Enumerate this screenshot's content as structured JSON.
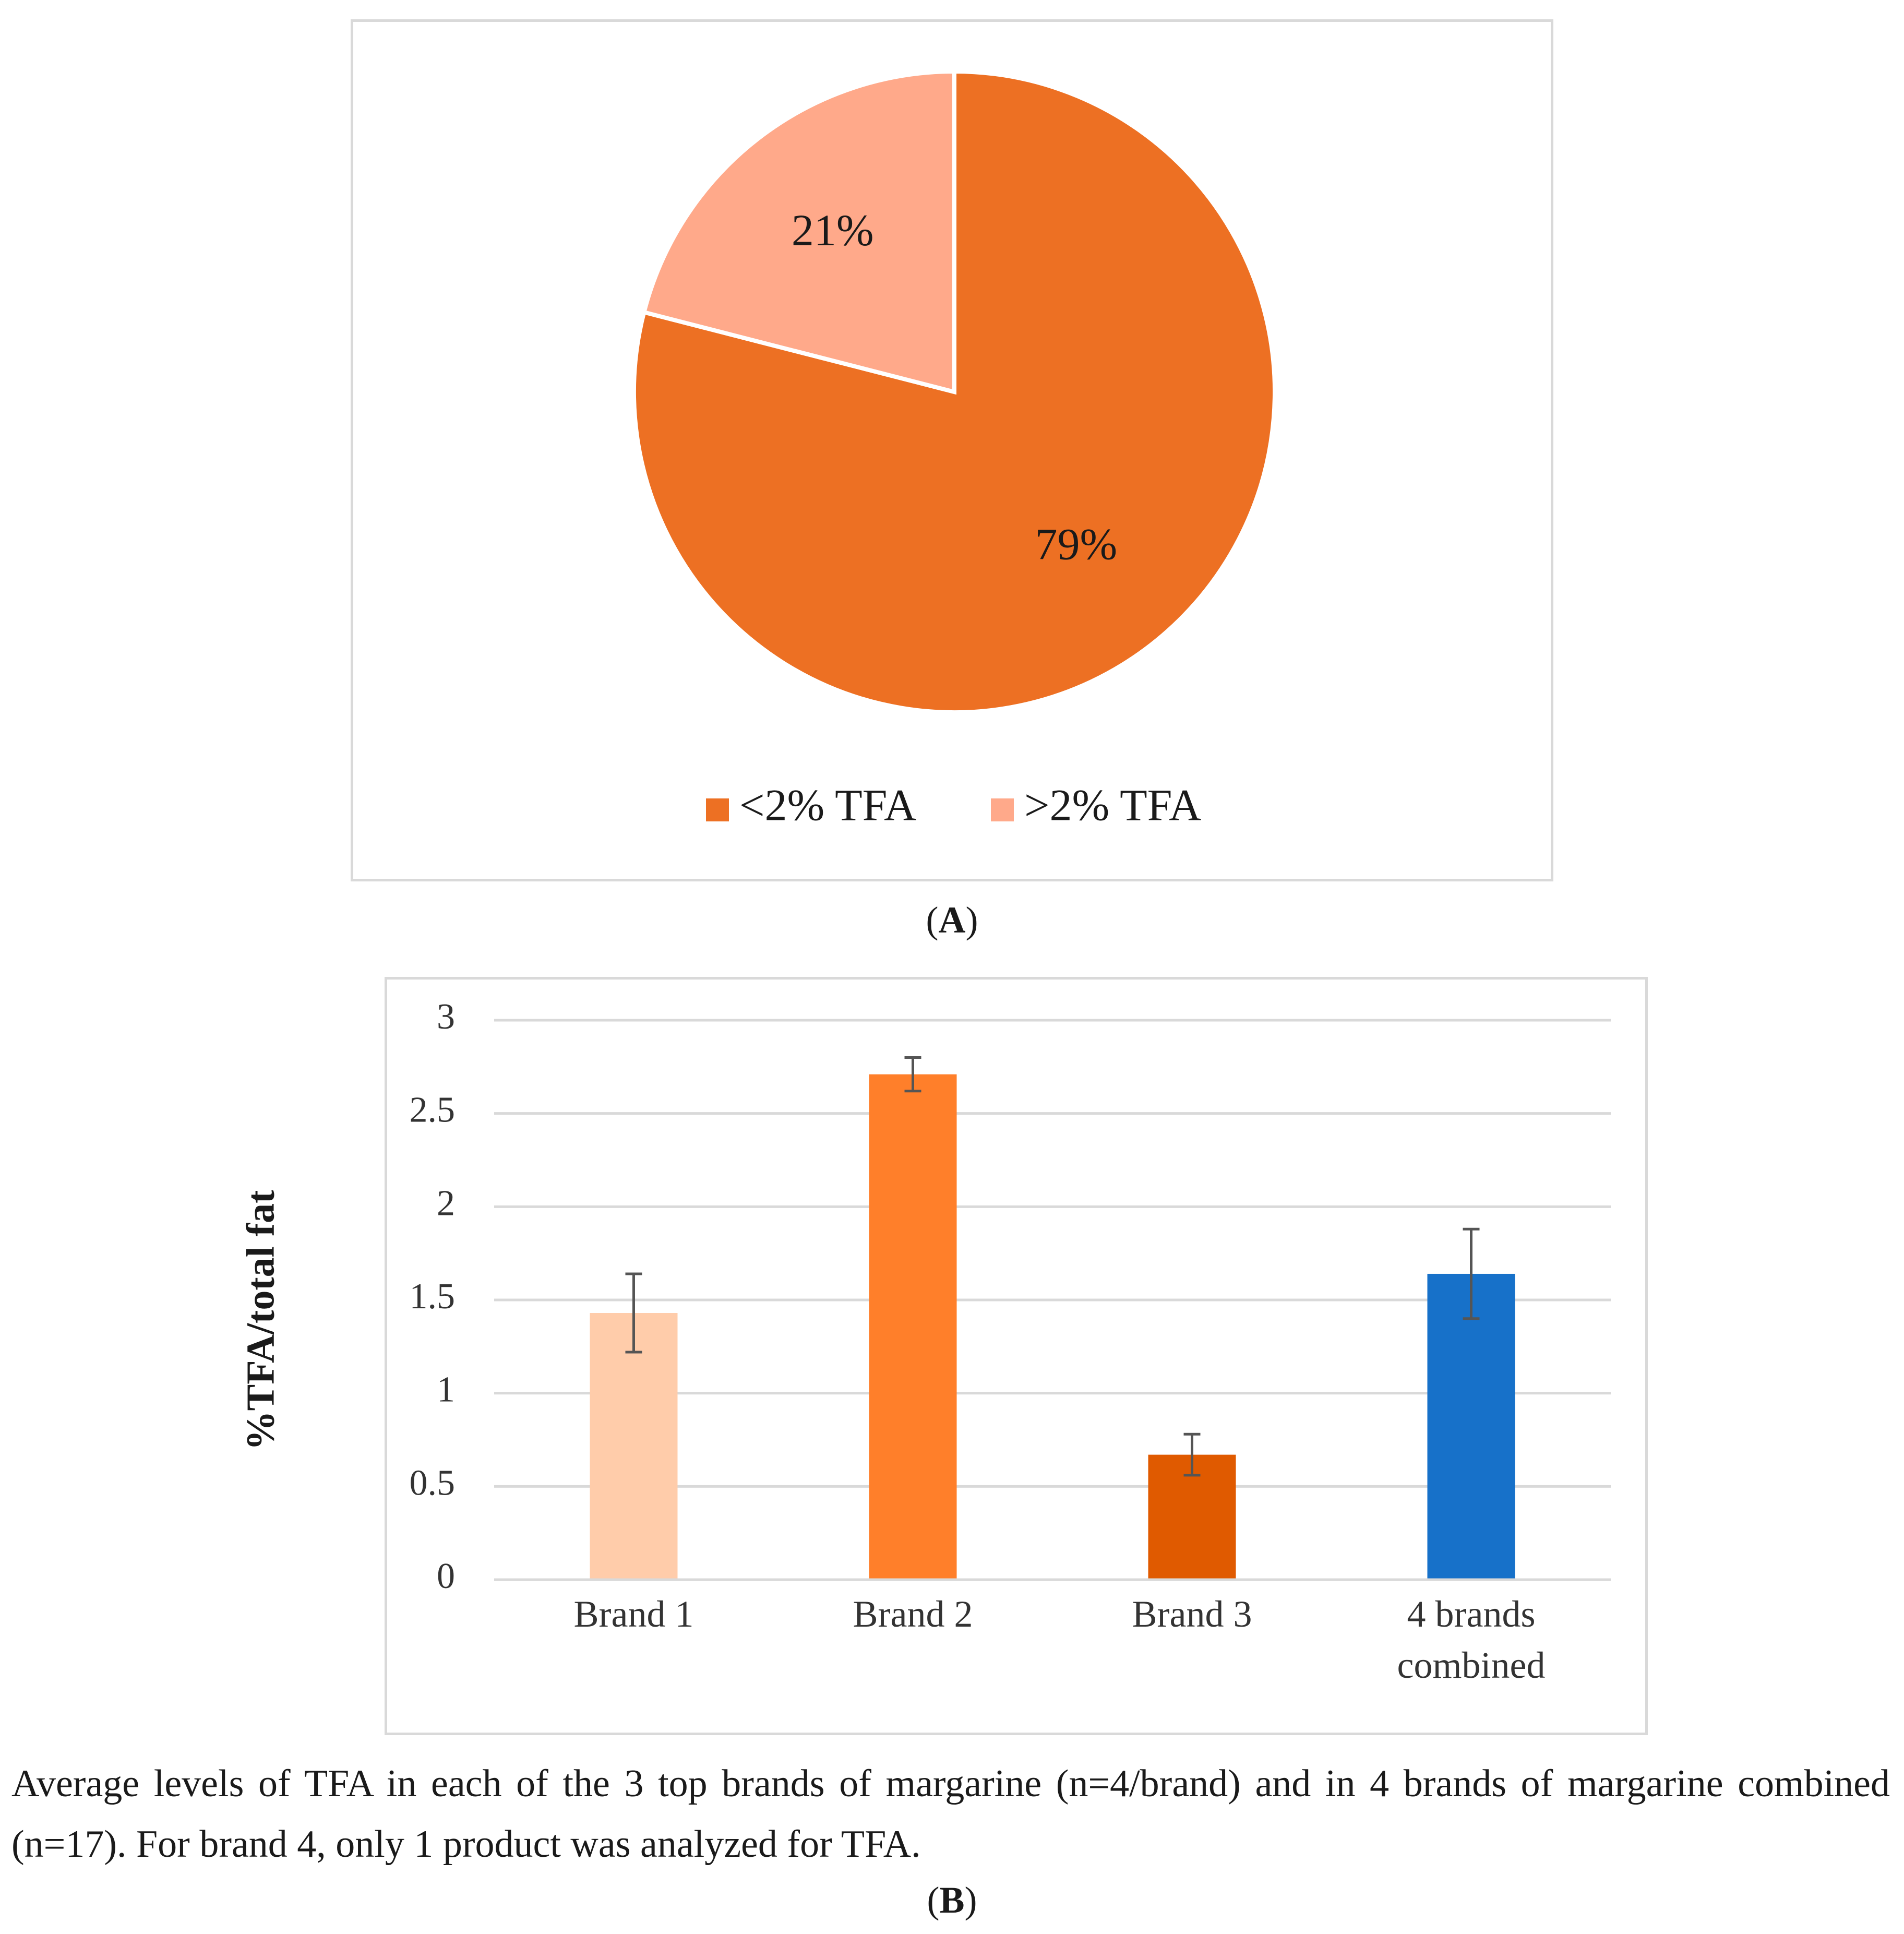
{
  "panels": {
    "a_label": "A",
    "b_label": "B"
  },
  "caption": "Average levels of TFA in each of the 3 top brands of margarine (n=4/brand) and in 4 brands of margarine combined (n=17). For brand 4, only 1 product was analyzed for TFA.",
  "chart_data": [
    {
      "type": "pie",
      "labels": [
        "<2% TFA",
        ">2% TFA"
      ],
      "values": [
        79,
        21
      ],
      "data_labels": [
        "79%",
        "21%"
      ],
      "colors": [
        "#ED7023",
        "#FFA98A"
      ],
      "legend_position": "bottom"
    },
    {
      "type": "bar",
      "categories": [
        "Brand 1",
        "Brand 2",
        "Brand 3",
        "4 brands combined"
      ],
      "values": [
        1.43,
        2.71,
        0.67,
        1.64
      ],
      "error": [
        0.21,
        0.09,
        0.11,
        0.24
      ],
      "colors": [
        "#FFCCAA",
        "#FF7F2A",
        "#E05A00",
        "#1771C9"
      ],
      "ylabel": "%TFA/total fat",
      "ylim": [
        0,
        3
      ],
      "yticks": [
        "0",
        "0.5",
        "1",
        "1.5",
        "2",
        "2.5",
        "3"
      ],
      "grid": true
    }
  ]
}
